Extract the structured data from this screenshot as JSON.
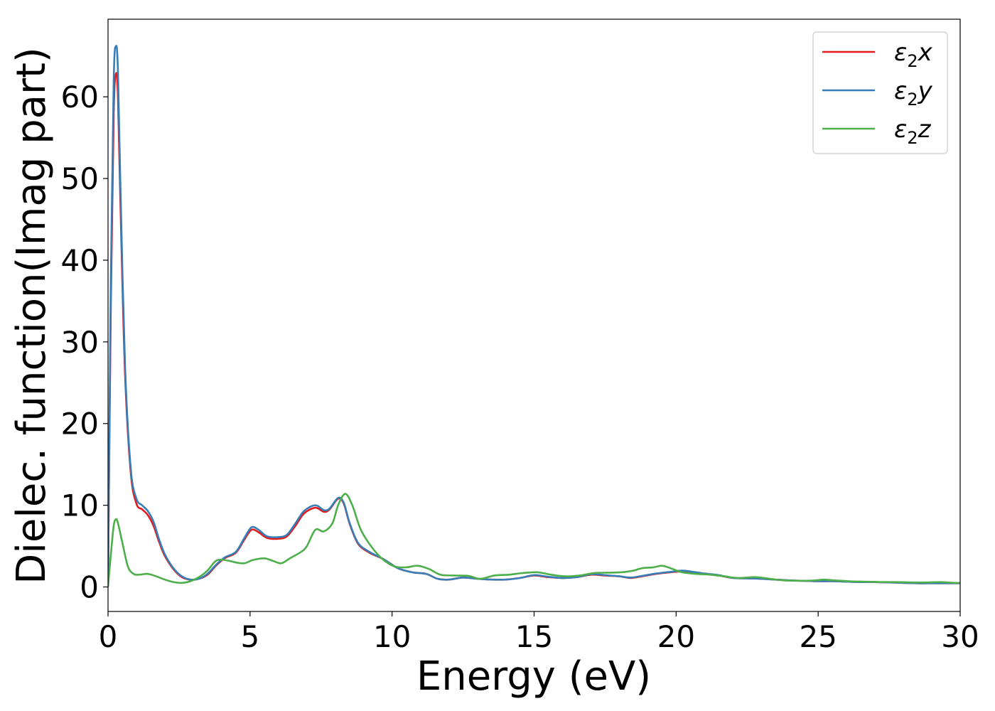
{
  "chart_data": {
    "type": "line",
    "title": "",
    "xlabel": "Energy (eV)",
    "ylabel": "Dielec. function(Imag part)",
    "xlim": [
      0,
      30
    ],
    "ylim": [
      -3,
      69.5
    ],
    "xticks": [
      0,
      5,
      10,
      15,
      20,
      25,
      30
    ],
    "xtick_labels": [
      "0",
      "5",
      "10",
      "15",
      "20",
      "25",
      "30"
    ],
    "yticks": [
      0,
      10,
      20,
      30,
      40,
      50,
      60
    ],
    "ytick_labels": [
      "0",
      "10",
      "20",
      "30",
      "40",
      "50",
      "60"
    ],
    "grid": false,
    "legend_position": "top-right",
    "series": [
      {
        "name": "ε₂x",
        "legend_main": "ε",
        "legend_sub": "2",
        "legend_var": "x",
        "color": "#e41a1c",
        "points": [
          [
            0,
            0
          ],
          [
            0.1,
            35
          ],
          [
            0.2,
            58
          ],
          [
            0.28,
            62.8
          ],
          [
            0.35,
            60
          ],
          [
            0.45,
            45
          ],
          [
            0.6,
            26
          ],
          [
            0.8,
            14
          ],
          [
            1.0,
            10.2
          ],
          [
            1.2,
            9.5
          ],
          [
            1.4,
            8.8
          ],
          [
            1.6,
            7.5
          ],
          [
            1.8,
            5.5
          ],
          [
            2.0,
            3.8
          ],
          [
            2.3,
            2.2
          ],
          [
            2.6,
            1.2
          ],
          [
            2.9,
            0.9
          ],
          [
            3.2,
            1.0
          ],
          [
            3.5,
            1.5
          ],
          [
            3.8,
            2.6
          ],
          [
            4.1,
            3.5
          ],
          [
            4.5,
            4.2
          ],
          [
            4.8,
            5.8
          ],
          [
            5.05,
            7.0
          ],
          [
            5.3,
            6.7
          ],
          [
            5.6,
            6.0
          ],
          [
            6.0,
            5.9
          ],
          [
            6.3,
            6.2
          ],
          [
            6.6,
            7.5
          ],
          [
            6.9,
            9.0
          ],
          [
            7.3,
            9.7
          ],
          [
            7.6,
            9.2
          ],
          [
            7.8,
            9.5
          ],
          [
            8.1,
            10.8
          ],
          [
            8.3,
            10.2
          ],
          [
            8.5,
            7.8
          ],
          [
            8.8,
            5.3
          ],
          [
            9.2,
            4.2
          ],
          [
            9.7,
            3.4
          ],
          [
            10.2,
            2.3
          ],
          [
            10.7,
            1.8
          ],
          [
            11.2,
            1.6
          ],
          [
            11.6,
            1.0
          ],
          [
            12.0,
            0.9
          ],
          [
            12.5,
            1.15
          ],
          [
            13.0,
            1.0
          ],
          [
            13.5,
            0.9
          ],
          [
            14.0,
            0.9
          ],
          [
            14.5,
            1.1
          ],
          [
            15.0,
            1.4
          ],
          [
            15.5,
            1.2
          ],
          [
            16.0,
            1.1
          ],
          [
            16.5,
            1.2
          ],
          [
            17.0,
            1.5
          ],
          [
            17.5,
            1.4
          ],
          [
            18.0,
            1.3
          ],
          [
            18.4,
            1.1
          ],
          [
            18.8,
            1.3
          ],
          [
            19.3,
            1.6
          ],
          [
            19.8,
            1.8
          ],
          [
            20.2,
            1.9
          ],
          [
            20.6,
            1.8
          ],
          [
            21.0,
            1.6
          ],
          [
            21.5,
            1.4
          ],
          [
            22.0,
            1.1
          ],
          [
            22.5,
            1.05
          ],
          [
            23.0,
            1.0
          ],
          [
            23.5,
            0.9
          ],
          [
            24.0,
            0.8
          ],
          [
            24.5,
            0.75
          ],
          [
            25.0,
            0.7
          ],
          [
            25.5,
            0.7
          ],
          [
            26.0,
            0.65
          ],
          [
            26.5,
            0.6
          ],
          [
            27.0,
            0.6
          ],
          [
            27.5,
            0.55
          ],
          [
            28.0,
            0.5
          ],
          [
            28.5,
            0.45
          ],
          [
            29.0,
            0.45
          ],
          [
            29.5,
            0.45
          ],
          [
            30.0,
            0.45
          ]
        ]
      },
      {
        "name": "ε₂y",
        "legend_main": "ε",
        "legend_sub": "2",
        "legend_var": "y",
        "color": "#377eb8",
        "points": [
          [
            0,
            0
          ],
          [
            0.1,
            38
          ],
          [
            0.2,
            62
          ],
          [
            0.28,
            66.2
          ],
          [
            0.35,
            63
          ],
          [
            0.45,
            47
          ],
          [
            0.6,
            27
          ],
          [
            0.8,
            14.5
          ],
          [
            1.0,
            10.8
          ],
          [
            1.2,
            10.0
          ],
          [
            1.4,
            9.3
          ],
          [
            1.6,
            8.0
          ],
          [
            1.8,
            5.8
          ],
          [
            2.0,
            4.0
          ],
          [
            2.3,
            2.3
          ],
          [
            2.6,
            1.3
          ],
          [
            2.9,
            0.9
          ],
          [
            3.2,
            1.0
          ],
          [
            3.5,
            1.6
          ],
          [
            3.8,
            2.7
          ],
          [
            4.1,
            3.6
          ],
          [
            4.5,
            4.3
          ],
          [
            4.8,
            6.0
          ],
          [
            5.05,
            7.3
          ],
          [
            5.3,
            7.0
          ],
          [
            5.6,
            6.2
          ],
          [
            6.0,
            6.1
          ],
          [
            6.3,
            6.4
          ],
          [
            6.6,
            7.8
          ],
          [
            6.9,
            9.3
          ],
          [
            7.3,
            10.0
          ],
          [
            7.6,
            9.4
          ],
          [
            7.8,
            9.6
          ],
          [
            8.1,
            10.9
          ],
          [
            8.3,
            10.3
          ],
          [
            8.5,
            7.9
          ],
          [
            8.8,
            5.4
          ],
          [
            9.2,
            4.3
          ],
          [
            9.7,
            3.4
          ],
          [
            10.2,
            2.3
          ],
          [
            10.7,
            1.8
          ],
          [
            11.2,
            1.6
          ],
          [
            11.6,
            1.0
          ],
          [
            12.0,
            0.9
          ],
          [
            12.5,
            1.15
          ],
          [
            13.0,
            1.0
          ],
          [
            13.5,
            0.9
          ],
          [
            14.0,
            0.9
          ],
          [
            14.5,
            1.1
          ],
          [
            15.0,
            1.45
          ],
          [
            15.5,
            1.25
          ],
          [
            16.0,
            1.1
          ],
          [
            16.5,
            1.2
          ],
          [
            17.0,
            1.55
          ],
          [
            17.5,
            1.45
          ],
          [
            18.0,
            1.3
          ],
          [
            18.4,
            1.15
          ],
          [
            18.8,
            1.35
          ],
          [
            19.3,
            1.65
          ],
          [
            19.8,
            1.85
          ],
          [
            20.2,
            2.0
          ],
          [
            20.6,
            1.85
          ],
          [
            21.0,
            1.65
          ],
          [
            21.5,
            1.45
          ],
          [
            22.0,
            1.1
          ],
          [
            22.5,
            1.05
          ],
          [
            23.0,
            1.0
          ],
          [
            23.5,
            0.9
          ],
          [
            24.0,
            0.8
          ],
          [
            24.5,
            0.75
          ],
          [
            25.0,
            0.7
          ],
          [
            25.5,
            0.7
          ],
          [
            26.0,
            0.65
          ],
          [
            26.5,
            0.6
          ],
          [
            27.0,
            0.6
          ],
          [
            27.5,
            0.55
          ],
          [
            28.0,
            0.5
          ],
          [
            28.5,
            0.45
          ],
          [
            29.0,
            0.45
          ],
          [
            29.5,
            0.45
          ],
          [
            30.0,
            0.45
          ]
        ]
      },
      {
        "name": "ε₂z",
        "legend_main": "ε",
        "legend_sub": "2",
        "legend_var": "z",
        "color": "#4daf4a",
        "points": [
          [
            0,
            0
          ],
          [
            0.1,
            4
          ],
          [
            0.2,
            7.5
          ],
          [
            0.28,
            8.3
          ],
          [
            0.35,
            7.8
          ],
          [
            0.5,
            5.5
          ],
          [
            0.7,
            2.5
          ],
          [
            0.9,
            1.6
          ],
          [
            1.1,
            1.5
          ],
          [
            1.4,
            1.6
          ],
          [
            1.7,
            1.3
          ],
          [
            2.0,
            0.9
          ],
          [
            2.3,
            0.6
          ],
          [
            2.6,
            0.5
          ],
          [
            2.9,
            0.7
          ],
          [
            3.2,
            1.2
          ],
          [
            3.5,
            2.0
          ],
          [
            3.8,
            3.2
          ],
          [
            4.1,
            3.3
          ],
          [
            4.5,
            3.0
          ],
          [
            4.8,
            2.9
          ],
          [
            5.1,
            3.3
          ],
          [
            5.5,
            3.5
          ],
          [
            5.8,
            3.2
          ],
          [
            6.1,
            2.9
          ],
          [
            6.4,
            3.5
          ],
          [
            6.8,
            4.3
          ],
          [
            7.0,
            5.0
          ],
          [
            7.3,
            7.0
          ],
          [
            7.6,
            6.8
          ],
          [
            7.9,
            7.8
          ],
          [
            8.1,
            10.0
          ],
          [
            8.35,
            11.4
          ],
          [
            8.6,
            10.0
          ],
          [
            8.9,
            7.0
          ],
          [
            9.3,
            4.8
          ],
          [
            9.7,
            3.3
          ],
          [
            10.1,
            2.5
          ],
          [
            10.5,
            2.4
          ],
          [
            10.9,
            2.6
          ],
          [
            11.3,
            2.2
          ],
          [
            11.7,
            1.5
          ],
          [
            12.2,
            1.4
          ],
          [
            12.7,
            1.35
          ],
          [
            13.1,
            1.0
          ],
          [
            13.6,
            1.4
          ],
          [
            14.1,
            1.5
          ],
          [
            14.6,
            1.7
          ],
          [
            15.1,
            1.8
          ],
          [
            15.6,
            1.5
          ],
          [
            16.1,
            1.3
          ],
          [
            16.6,
            1.4
          ],
          [
            17.1,
            1.7
          ],
          [
            17.6,
            1.75
          ],
          [
            18.1,
            1.8
          ],
          [
            18.5,
            2.0
          ],
          [
            18.8,
            2.3
          ],
          [
            19.2,
            2.4
          ],
          [
            19.5,
            2.6
          ],
          [
            19.8,
            2.3
          ],
          [
            20.2,
            1.8
          ],
          [
            20.7,
            1.6
          ],
          [
            21.2,
            1.5
          ],
          [
            21.7,
            1.3
          ],
          [
            22.2,
            1.1
          ],
          [
            22.8,
            1.2
          ],
          [
            23.3,
            1.0
          ],
          [
            23.8,
            0.8
          ],
          [
            24.4,
            0.75
          ],
          [
            24.9,
            0.8
          ],
          [
            25.2,
            0.9
          ],
          [
            25.6,
            0.8
          ],
          [
            26.1,
            0.7
          ],
          [
            26.6,
            0.65
          ],
          [
            27.2,
            0.6
          ],
          [
            27.8,
            0.6
          ],
          [
            28.3,
            0.55
          ],
          [
            28.8,
            0.55
          ],
          [
            29.3,
            0.6
          ],
          [
            29.8,
            0.5
          ],
          [
            30.0,
            0.5
          ]
        ]
      }
    ]
  }
}
